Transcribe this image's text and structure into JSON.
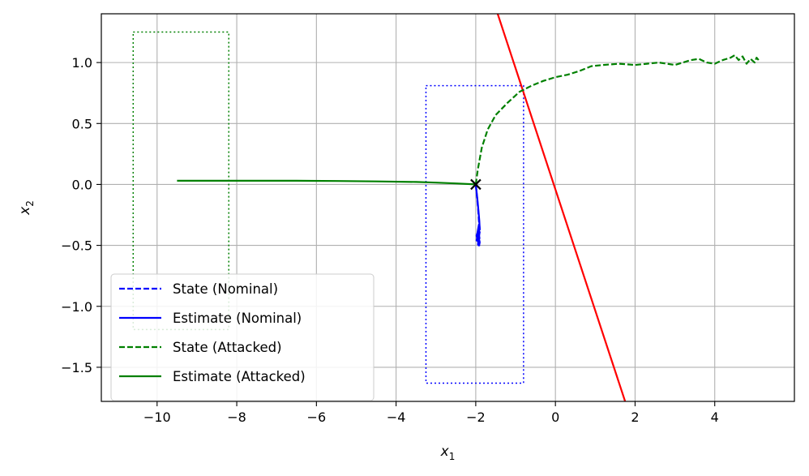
{
  "chart_data": {
    "type": "line",
    "xlabel": "x",
    "xlabel_sub": "1",
    "ylabel": "x",
    "ylabel_sub": "2",
    "xlim": [
      -11.4,
      6.0
    ],
    "ylim": [
      -1.78,
      1.4
    ],
    "xticks": [
      -10,
      -8,
      -6,
      -4,
      -2,
      0,
      2,
      4
    ],
    "xtick_labels": [
      "−10",
      "−8",
      "−6",
      "−4",
      "−2",
      "0",
      "2",
      "4"
    ],
    "yticks": [
      -1.5,
      -1.0,
      -0.5,
      0.0,
      0.5,
      1.0
    ],
    "ytick_labels": [
      "−1.5",
      "−1.0",
      "−0.5",
      "0.0",
      "0.5",
      "1.0"
    ],
    "grid": true,
    "legend_position": "lower-left",
    "colors": {
      "nominal": "#0000ff",
      "attacked": "#008000",
      "boundary": "#ff0000",
      "marker": "#000000",
      "grid": "#b0b0b0"
    },
    "series": [
      {
        "name": "State (Nominal)",
        "style": "dashed",
        "color": "#0000ff",
        "x": [
          -2.0,
          -1.97,
          -1.94,
          -1.92,
          -1.9,
          -1.91,
          -1.93,
          -1.95,
          -1.98,
          -1.94,
          -1.9,
          -1.93,
          -1.97,
          -1.92,
          -1.9,
          -1.95,
          -1.93
        ],
        "y": [
          0.0,
          -0.1,
          -0.2,
          -0.3,
          -0.36,
          -0.4,
          -0.35,
          -0.42,
          -0.46,
          -0.38,
          -0.45,
          -0.5,
          -0.43,
          -0.4,
          -0.48,
          -0.51,
          -0.44
        ]
      },
      {
        "name": "Estimate (Nominal)",
        "style": "solid",
        "color": "#0000ff",
        "x": [
          -2.0,
          -1.96,
          -1.93,
          -1.91,
          -1.9,
          -1.92,
          -1.96,
          -1.93,
          -1.9,
          -1.94,
          -1.98,
          -1.92,
          -1.91,
          -1.95,
          -1.93
        ],
        "y": [
          0.0,
          -0.12,
          -0.22,
          -0.3,
          -0.37,
          -0.33,
          -0.4,
          -0.45,
          -0.39,
          -0.47,
          -0.42,
          -0.36,
          -0.5,
          -0.44,
          -0.4
        ]
      },
      {
        "name": "State (Attacked)",
        "style": "dashed",
        "color": "#008000",
        "x": [
          -2.0,
          -1.95,
          -1.85,
          -1.7,
          -1.5,
          -1.2,
          -0.9,
          -0.6,
          -0.3,
          0.0,
          0.3,
          0.6,
          0.9,
          1.2,
          1.6,
          2.0,
          2.3,
          2.6,
          3.0,
          3.2,
          3.4,
          3.6,
          3.8,
          4.0,
          4.2,
          4.4,
          4.5,
          4.6,
          4.7,
          4.8,
          4.9,
          5.0,
          5.05,
          5.1
        ],
        "y": [
          0.0,
          0.12,
          0.3,
          0.45,
          0.57,
          0.67,
          0.76,
          0.81,
          0.85,
          0.88,
          0.9,
          0.93,
          0.97,
          0.98,
          0.99,
          0.98,
          0.99,
          1.0,
          0.98,
          1.0,
          1.02,
          1.03,
          1.0,
          0.99,
          1.02,
          1.04,
          1.06,
          1.02,
          1.05,
          0.99,
          1.03,
          1.0,
          1.04,
          1.02
        ]
      },
      {
        "name": "Estimate (Attacked)",
        "style": "solid",
        "color": "#008000",
        "x": [
          -9.5,
          -8.5,
          -7.5,
          -6.5,
          -5.5,
          -4.5,
          -3.5,
          -3.0,
          -2.5,
          -2.0
        ],
        "y": [
          0.03,
          0.03,
          0.03,
          0.03,
          0.028,
          0.025,
          0.02,
          0.015,
          0.008,
          0.0
        ]
      }
    ],
    "boundary_line": {
      "x": [
        -1.45,
        1.75
      ],
      "y": [
        1.4,
        -1.78
      ],
      "color": "#ff0000"
    },
    "rectangles": [
      {
        "color": "#008000",
        "style": "dotted",
        "x": [
          -10.6,
          -8.2
        ],
        "y": [
          -1.19,
          1.25
        ]
      },
      {
        "color": "#0000ff",
        "style": "dotted",
        "x": [
          -3.25,
          -0.8
        ],
        "y": [
          -1.63,
          0.81
        ]
      }
    ],
    "marker": {
      "symbol": "x",
      "x": -2.0,
      "y": 0.0,
      "color": "#000000"
    }
  }
}
